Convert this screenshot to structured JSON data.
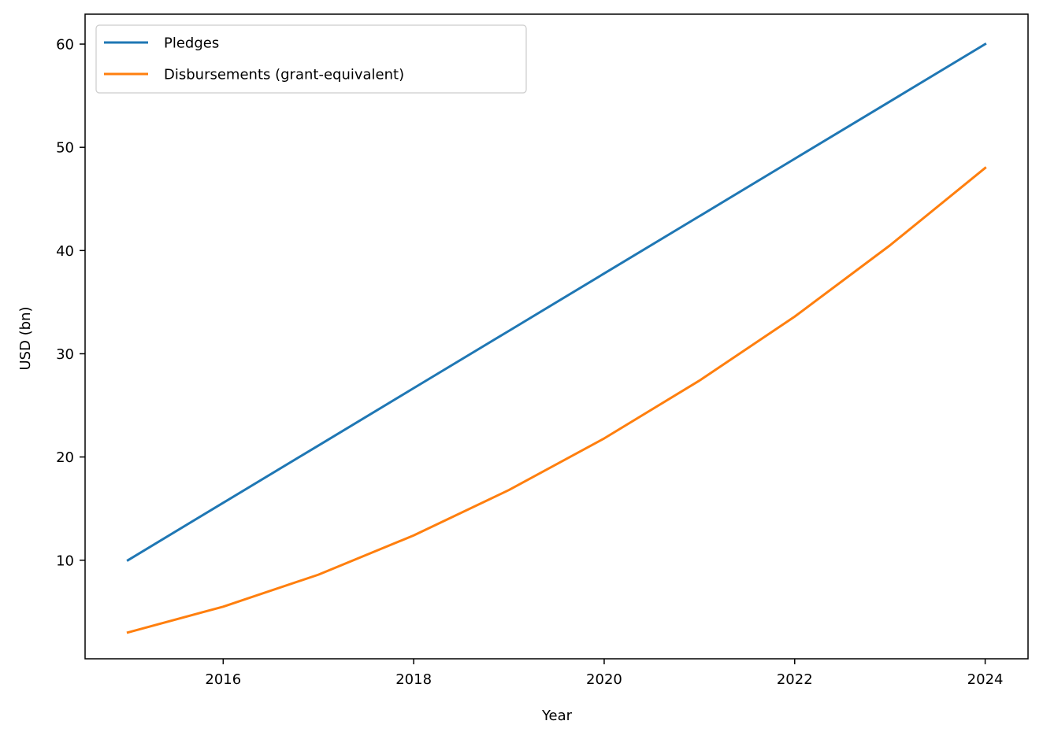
{
  "chart_data": {
    "type": "line",
    "title": "",
    "xlabel": "Year",
    "ylabel": "USD (bn)",
    "x": [
      2015,
      2016,
      2017,
      2018,
      2019,
      2020,
      2021,
      2022,
      2023,
      2024
    ],
    "xlim": [
      2014.55,
      2024.45
    ],
    "ylim": [
      0.45,
      62.9
    ],
    "xticks": [
      2016,
      2018,
      2020,
      2022,
      2024
    ],
    "yticks": [
      10,
      20,
      30,
      40,
      50,
      60
    ],
    "grid": false,
    "legend": "top-left",
    "series": [
      {
        "name": "Pledges",
        "color": "#1f77b4",
        "values": [
          10.0,
          15.56,
          21.11,
          26.67,
          32.22,
          37.78,
          43.33,
          48.89,
          54.44,
          60.0
        ]
      },
      {
        "name": "Disbursements (grant-equivalent)",
        "color": "#ff7f0e",
        "values": [
          3.0,
          5.5,
          8.6,
          12.4,
          16.8,
          21.8,
          27.4,
          33.6,
          40.5,
          48.0
        ]
      }
    ]
  }
}
